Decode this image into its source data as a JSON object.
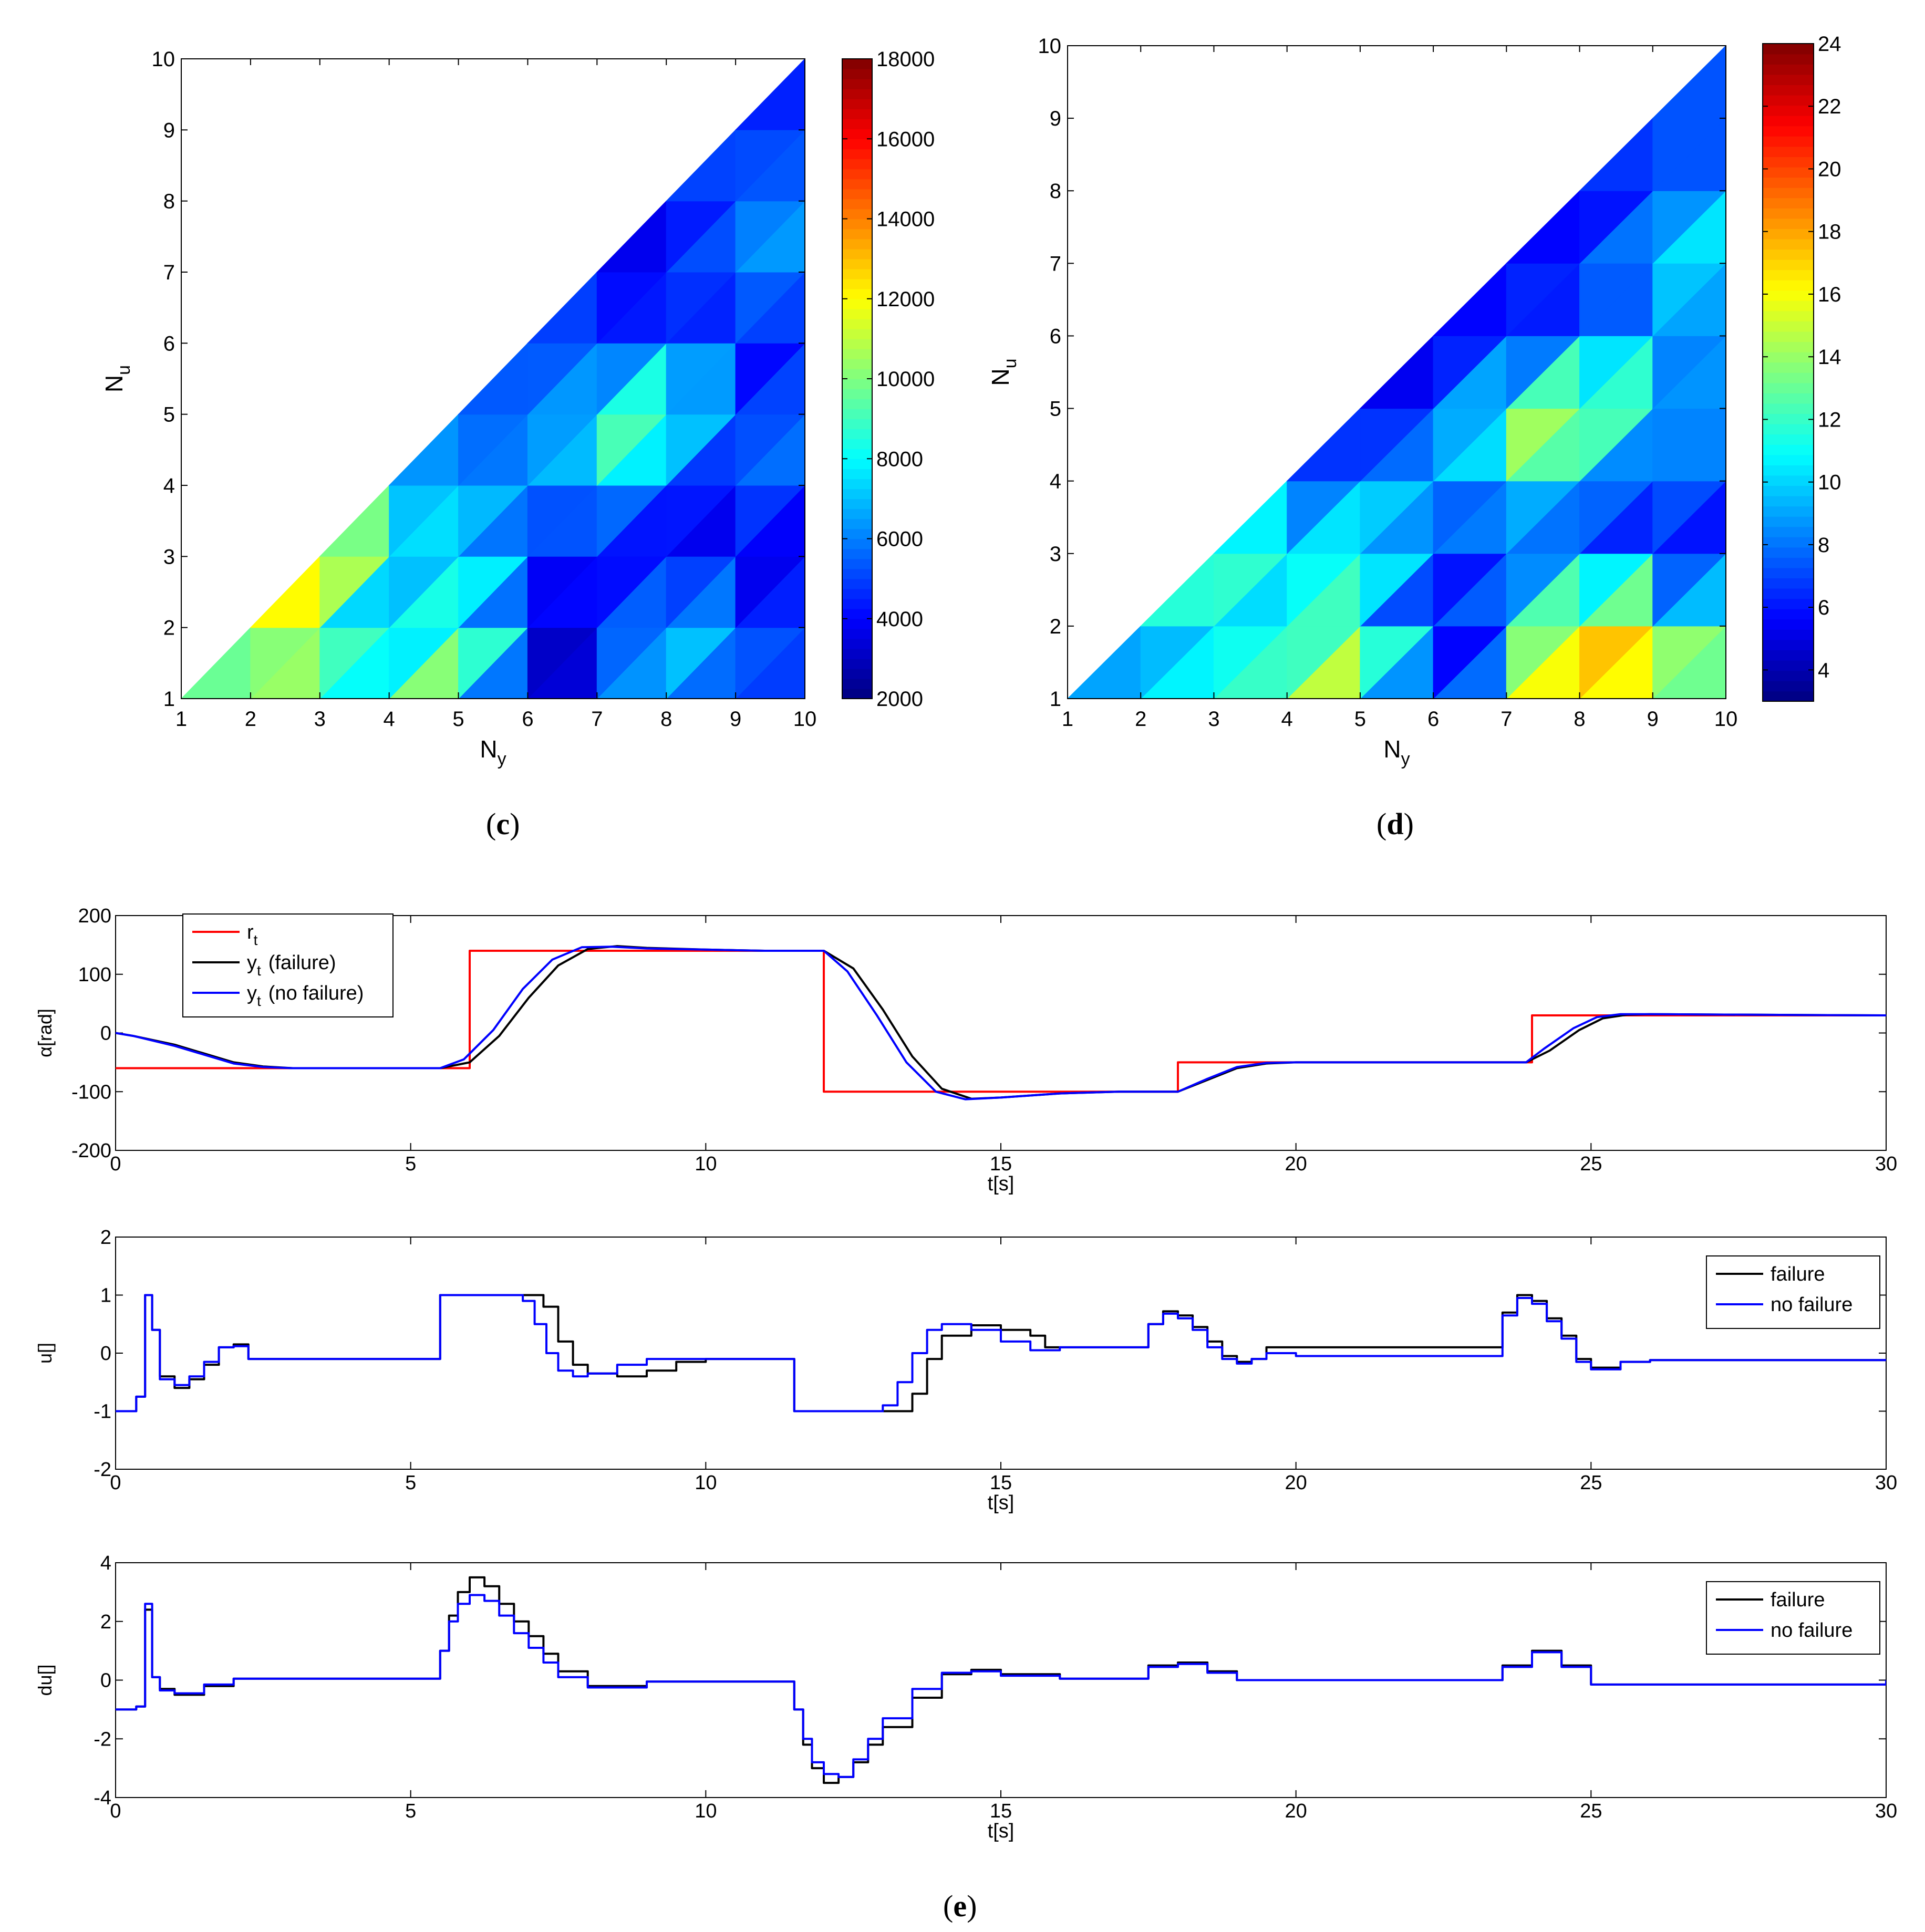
{
  "chart_data": [
    {
      "id": "c",
      "panel_label": "c",
      "type": "heatmap",
      "subtype": "filled-contour (lower triangle)",
      "xlabel": "N",
      "xlabel_sub": "y",
      "ylabel": "N",
      "ylabel_sub": "u",
      "xlim": [
        1,
        10
      ],
      "ylim": [
        1,
        10
      ],
      "xticks": [
        1,
        2,
        3,
        4,
        5,
        6,
        7,
        8,
        9,
        10
      ],
      "yticks": [
        1,
        2,
        3,
        4,
        5,
        6,
        7,
        8,
        9,
        10
      ],
      "colorbar": {
        "min": 2000,
        "max": 18000,
        "ticks": [
          2000,
          4000,
          6000,
          8000,
          10000,
          12000,
          14000,
          16000,
          18000
        ]
      },
      "grid_rows_note": "z[Nu-1][Ny-1], defined for Nu<=Ny",
      "z": [
        [
          8200,
          9800,
          11800,
          6800,
          12600,
          2500,
          3200,
          6500,
          5200,
          4400
        ],
        [
          null,
          11000,
          9600,
          5600,
          11000,
          2500,
          4400,
          9200,
          5400,
          5200
        ],
        [
          null,
          null,
          15500,
          7000,
          8500,
          3800,
          5300,
          2800,
          3000,
          2800
        ],
        [
          null,
          null,
          null,
          7200,
          7000,
          5200,
          6800,
          4800,
          5400,
          6000
        ],
        [
          null,
          null,
          null,
          null,
          4800,
          5400,
          8800,
          11800,
          4500,
          5800
        ],
        [
          null,
          null,
          null,
          null,
          null,
          6000,
          4900,
          4600,
          3000,
          4800
        ],
        [
          null,
          null,
          null,
          null,
          null,
          null,
          4000,
          3600,
          6000,
          7200
        ],
        [
          null,
          null,
          null,
          null,
          null,
          null,
          null,
          3600,
          6000,
          6000
        ],
        [
          null,
          null,
          null,
          null,
          null,
          null,
          null,
          null,
          5500,
          4000
        ],
        [
          null,
          null,
          null,
          null,
          null,
          null,
          null,
          null,
          null,
          4000
        ]
      ]
    },
    {
      "id": "d",
      "panel_label": "d",
      "type": "heatmap",
      "subtype": "filled-contour (lower triangle)",
      "xlabel": "N",
      "xlabel_sub": "y",
      "ylabel": "N",
      "ylabel_sub": "u",
      "xlim": [
        1,
        10
      ],
      "ylim": [
        1,
        10
      ],
      "xticks": [
        1,
        2,
        3,
        4,
        5,
        6,
        7,
        8,
        9,
        10
      ],
      "yticks": [
        1,
        2,
        3,
        4,
        5,
        6,
        7,
        8,
        9,
        10
      ],
      "colorbar": {
        "min": 3,
        "max": 24,
        "ticks": [
          4,
          6,
          8,
          10,
          12,
          14,
          16,
          18,
          20,
          22,
          24
        ]
      },
      "grid_rows_note": "z[Nu-1][Ny-1], defined for Nu<=Ny",
      "z": [
        [
          9,
          9.5,
          12,
          13,
          19,
          3.5,
          10,
          17,
          17.5,
          12
        ],
        [
          null,
          8.5,
          10.5,
          11,
          12.5,
          3.5,
          10,
          21,
          14,
          10
        ],
        [
          null,
          null,
          16,
          9,
          13,
          5.5,
          9,
          6.5,
          4.5,
          4.5
        ],
        [
          null,
          null,
          null,
          7,
          9,
          7.5,
          10,
          8.5,
          8,
          9
        ],
        [
          null,
          null,
          null,
          null,
          4,
          7,
          13,
          19.5,
          9,
          8
        ],
        [
          null,
          null,
          null,
          null,
          null,
          5,
          7,
          4.5,
          7,
          9
        ],
        [
          null,
          null,
          null,
          null,
          null,
          null,
          5,
          7,
          11,
          11
        ],
        [
          null,
          null,
          null,
          null,
          null,
          null,
          null,
          5,
          6,
          9
        ],
        [
          null,
          null,
          null,
          null,
          null,
          null,
          null,
          null,
          9,
          7
        ],
        [
          null,
          null,
          null,
          null,
          null,
          null,
          null,
          null,
          null,
          6
        ]
      ]
    },
    {
      "id": "e1",
      "type": "line",
      "ylabel": "α[rad]",
      "xlabel": "t[s]",
      "xlim": [
        0,
        30
      ],
      "ylim": [
        -200,
        200
      ],
      "xticks": [
        0,
        5,
        10,
        15,
        20,
        25,
        30
      ],
      "yticks": [
        -200,
        -100,
        0,
        100,
        200
      ],
      "legend_position": "top-left",
      "series": [
        {
          "name": "r",
          "name_sub": "t",
          "suffix": "",
          "color": "#ff0000",
          "step": true,
          "x": [
            0,
            6,
            6,
            12,
            12,
            18,
            18,
            24,
            24,
            30
          ],
          "y": [
            -60,
            -60,
            140,
            140,
            -100,
            -100,
            -50,
            -50,
            30,
            30
          ]
        },
        {
          "name": "y",
          "name_sub": "t",
          "suffix": "(failure)",
          "color": "#000000",
          "step": false,
          "x": [
            0,
            0.3,
            1,
            1.5,
            2,
            2.5,
            3,
            5.5,
            6,
            6.5,
            7,
            7.5,
            8,
            8.5,
            9,
            10,
            11,
            12,
            12.5,
            13,
            13.5,
            14,
            14.5,
            15,
            16,
            17,
            18,
            18.5,
            19,
            19.5,
            20,
            22,
            23.9,
            24.3,
            24.8,
            25.2,
            25.6,
            26,
            28,
            30
          ],
          "y": [
            0,
            -5,
            -20,
            -35,
            -50,
            -57,
            -60,
            -60,
            -50,
            -5,
            60,
            115,
            143,
            148,
            145,
            142,
            140,
            140,
            110,
            40,
            -40,
            -95,
            -112,
            -110,
            -103,
            -100,
            -100,
            -80,
            -60,
            -52,
            -50,
            -50,
            -50,
            -30,
            5,
            25,
            31,
            32,
            31,
            30
          ]
        },
        {
          "name": "y",
          "name_sub": "t",
          "suffix": "(no failure)",
          "color": "#0000ff",
          "step": false,
          "x": [
            0,
            0.3,
            1,
            1.5,
            2,
            2.5,
            3,
            5.5,
            5.9,
            6.4,
            6.9,
            7.4,
            7.9,
            8.4,
            9,
            10,
            11,
            12,
            12.4,
            12.9,
            13.4,
            13.9,
            14.4,
            15,
            16,
            17,
            18,
            18.5,
            19,
            19.5,
            20,
            22,
            23.9,
            24.2,
            24.7,
            25.1,
            25.5,
            26,
            28,
            30
          ],
          "y": [
            0,
            -5,
            -22,
            -37,
            -52,
            -58,
            -60,
            -60,
            -45,
            5,
            75,
            125,
            146,
            147,
            144,
            142,
            140,
            140,
            105,
            30,
            -50,
            -100,
            -113,
            -110,
            -103,
            -100,
            -100,
            -78,
            -58,
            -51,
            -50,
            -50,
            -50,
            -27,
            8,
            27,
            32,
            32,
            31,
            30
          ]
        }
      ]
    },
    {
      "id": "e2",
      "type": "line",
      "ylabel": "u[]",
      "xlabel": "t[s]",
      "xlim": [
        0,
        30
      ],
      "ylim": [
        -2,
        2
      ],
      "xticks": [
        0,
        5,
        10,
        15,
        20,
        25,
        30
      ],
      "yticks": [
        -2,
        -1,
        0,
        1,
        2
      ],
      "legend_position": "top-right",
      "series": [
        {
          "name": "failure",
          "color": "#000000",
          "step": true,
          "x": [
            0,
            0.35,
            0.5,
            0.62,
            0.75,
            1,
            1.25,
            1.5,
            1.75,
            2,
            2.25,
            4,
            5.5,
            7,
            7.25,
            7.5,
            7.75,
            8,
            8.5,
            9,
            9.5,
            10,
            11.5,
            13.25,
            13.5,
            13.75,
            14,
            14.5,
            15,
            15.5,
            15.75,
            16,
            17.5,
            17.75,
            18,
            18.25,
            18.5,
            18.75,
            19,
            19.25,
            19.5,
            23.5,
            23.75,
            24,
            24.25,
            24.5,
            24.75,
            25,
            25.5,
            26,
            30
          ],
          "y": [
            -1,
            -0.75,
            1,
            0.4,
            -0.4,
            -0.6,
            -0.45,
            -0.2,
            0.1,
            0.15,
            -0.1,
            -0.1,
            1,
            1,
            0.8,
            0.2,
            -0.2,
            -0.35,
            -0.4,
            -0.3,
            -0.15,
            -0.1,
            -1,
            -1,
            -0.7,
            -0.1,
            0.3,
            0.48,
            0.4,
            0.3,
            0.1,
            0.1,
            0.5,
            0.72,
            0.65,
            0.45,
            0.2,
            -0.05,
            -0.15,
            -0.1,
            0.1,
            0.7,
            1.0,
            0.9,
            0.6,
            0.3,
            -0.1,
            -0.25,
            -0.15,
            -0.12,
            -0.1
          ]
        },
        {
          "name": "no failure",
          "color": "#0000ff",
          "step": true,
          "x": [
            0,
            0.35,
            0.5,
            0.62,
            0.75,
            1,
            1.25,
            1.5,
            1.75,
            2,
            2.25,
            4,
            5.5,
            6.9,
            7.1,
            7.3,
            7.5,
            7.75,
            8,
            8.5,
            9,
            9.5,
            10,
            11.5,
            13,
            13.25,
            13.5,
            13.75,
            14,
            14.5,
            15,
            15.5,
            16,
            17.5,
            17.75,
            18,
            18.25,
            18.5,
            18.75,
            19,
            19.25,
            19.5,
            20,
            23.5,
            23.75,
            24,
            24.25,
            24.5,
            24.75,
            25,
            25.5,
            26,
            30
          ],
          "y": [
            -1,
            -0.75,
            1,
            0.4,
            -0.45,
            -0.55,
            -0.4,
            -0.15,
            0.1,
            0.12,
            -0.1,
            -0.1,
            1,
            0.9,
            0.5,
            0.0,
            -0.3,
            -0.4,
            -0.35,
            -0.2,
            -0.1,
            -0.1,
            -0.1,
            -1,
            -0.9,
            -0.5,
            0.0,
            0.4,
            0.5,
            0.4,
            0.2,
            0.05,
            0.1,
            0.5,
            0.68,
            0.6,
            0.4,
            0.1,
            -0.1,
            -0.18,
            -0.1,
            0.0,
            -0.05,
            0.65,
            0.95,
            0.85,
            0.55,
            0.25,
            -0.15,
            -0.28,
            -0.15,
            -0.12,
            -0.1
          ]
        }
      ]
    },
    {
      "id": "e3",
      "type": "line",
      "ylabel": "du[]",
      "xlabel": "t[s]",
      "xlim": [
        0,
        30
      ],
      "ylim": [
        -4,
        4
      ],
      "xticks": [
        0,
        5,
        10,
        15,
        20,
        25,
        30
      ],
      "yticks": [
        -4,
        -2,
        0,
        2,
        4
      ],
      "legend_position": "top-right",
      "series": [
        {
          "name": "failure",
          "color": "#000000",
          "step": true,
          "x": [
            0,
            0.35,
            0.5,
            0.62,
            0.75,
            1,
            1.5,
            2,
            5.5,
            5.65,
            5.8,
            6,
            6.25,
            6.5,
            6.75,
            7,
            7.25,
            7.5,
            8,
            9,
            11.5,
            11.65,
            11.8,
            12,
            12.25,
            12.5,
            12.75,
            13,
            13.5,
            14,
            14.5,
            15,
            16,
            17.5,
            18,
            18.5,
            19,
            23.5,
            24,
            24.5,
            25,
            30
          ],
          "y": [
            -1.0,
            -0.9,
            2.4,
            0.1,
            -0.3,
            -0.5,
            -0.2,
            0.05,
            1.0,
            2.2,
            3.0,
            3.5,
            3.2,
            2.6,
            2.0,
            1.5,
            0.9,
            0.3,
            -0.2,
            -0.05,
            -1.0,
            -2.2,
            -3.0,
            -3.5,
            -3.3,
            -2.8,
            -2.2,
            -1.6,
            -0.6,
            0.2,
            0.35,
            0.2,
            0.05,
            0.5,
            0.6,
            0.3,
            0.0,
            0.5,
            1.0,
            0.5,
            -0.15,
            0.0
          ]
        },
        {
          "name": "no failure",
          "color": "#0000ff",
          "step": true,
          "x": [
            0,
            0.35,
            0.5,
            0.62,
            0.75,
            1,
            1.5,
            2,
            5.5,
            5.65,
            5.8,
            6,
            6.25,
            6.5,
            6.75,
            7,
            7.25,
            7.5,
            8,
            9,
            11.5,
            11.65,
            11.8,
            12,
            12.25,
            12.5,
            12.75,
            13,
            13.5,
            14,
            14.5,
            15,
            16,
            17.5,
            18,
            18.5,
            19,
            23.5,
            24,
            24.5,
            25,
            30
          ],
          "y": [
            -1.0,
            -0.9,
            2.6,
            0.1,
            -0.35,
            -0.45,
            -0.15,
            0.05,
            1.0,
            2.0,
            2.6,
            2.9,
            2.7,
            2.2,
            1.6,
            1.1,
            0.6,
            0.1,
            -0.25,
            -0.05,
            -1.0,
            -2.0,
            -2.8,
            -3.2,
            -3.3,
            -2.7,
            -2.0,
            -1.3,
            -0.3,
            0.25,
            0.3,
            0.15,
            0.05,
            0.45,
            0.55,
            0.25,
            0.0,
            0.45,
            0.95,
            0.45,
            -0.15,
            0.0
          ]
        }
      ]
    }
  ],
  "panel_labels": {
    "c": "c",
    "d": "d",
    "e": "e"
  }
}
